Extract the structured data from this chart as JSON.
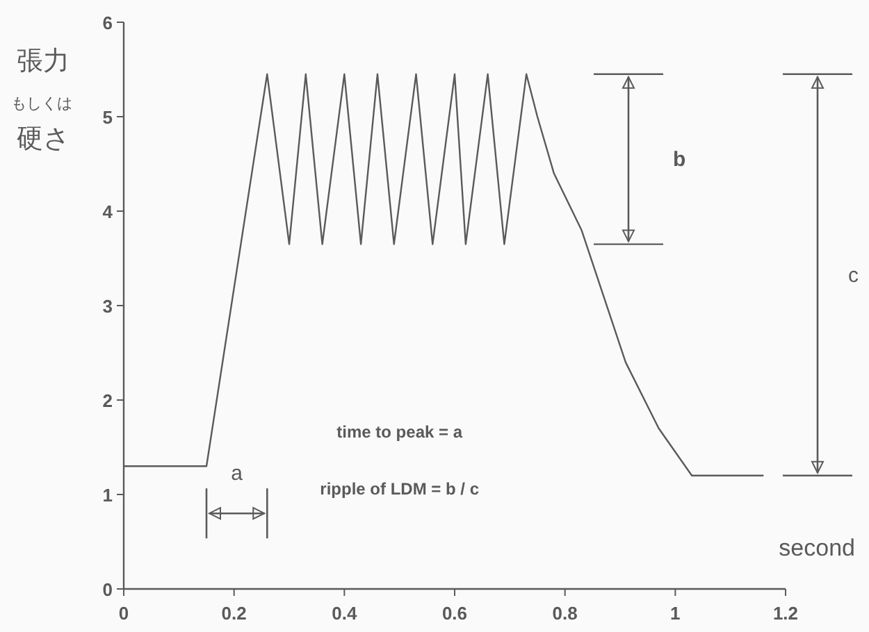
{
  "chart_data": {
    "type": "line",
    "xlabel": "second",
    "ylabel": "張力もしくは硬さ",
    "xlim": [
      0,
      1.2
    ],
    "ylim": [
      0,
      6
    ],
    "xticks": [
      0,
      0.2,
      0.4,
      0.6,
      0.8,
      1,
      1.2
    ],
    "yticks": [
      0,
      1,
      2,
      3,
      4,
      5,
      6
    ],
    "grid": false,
    "marker": "none",
    "line_style": "solid",
    "annotations": [
      "a",
      "b",
      "c",
      "time to peak = a",
      "ripple of LDM = b / c"
    ],
    "series": [
      {
        "color": "#5a5a5a",
        "x": [
          0,
          0.15,
          0.26,
          0.3,
          0.33,
          0.36,
          0.4,
          0.43,
          0.46,
          0.49,
          0.53,
          0.56,
          0.6,
          0.62,
          0.66,
          0.69,
          0.73,
          0.75,
          0.78,
          0.83,
          0.87,
          0.91,
          0.97,
          1.03,
          1.16
        ],
        "values": [
          1.3,
          1.3,
          5.45,
          3.65,
          5.45,
          3.65,
          5.45,
          3.65,
          5.45,
          3.65,
          5.45,
          3.65,
          5.45,
          3.65,
          5.45,
          3.65,
          5.45,
          5.0,
          4.4,
          3.8,
          3.1,
          2.4,
          1.7,
          1.2,
          1.2
        ]
      }
    ]
  }
}
